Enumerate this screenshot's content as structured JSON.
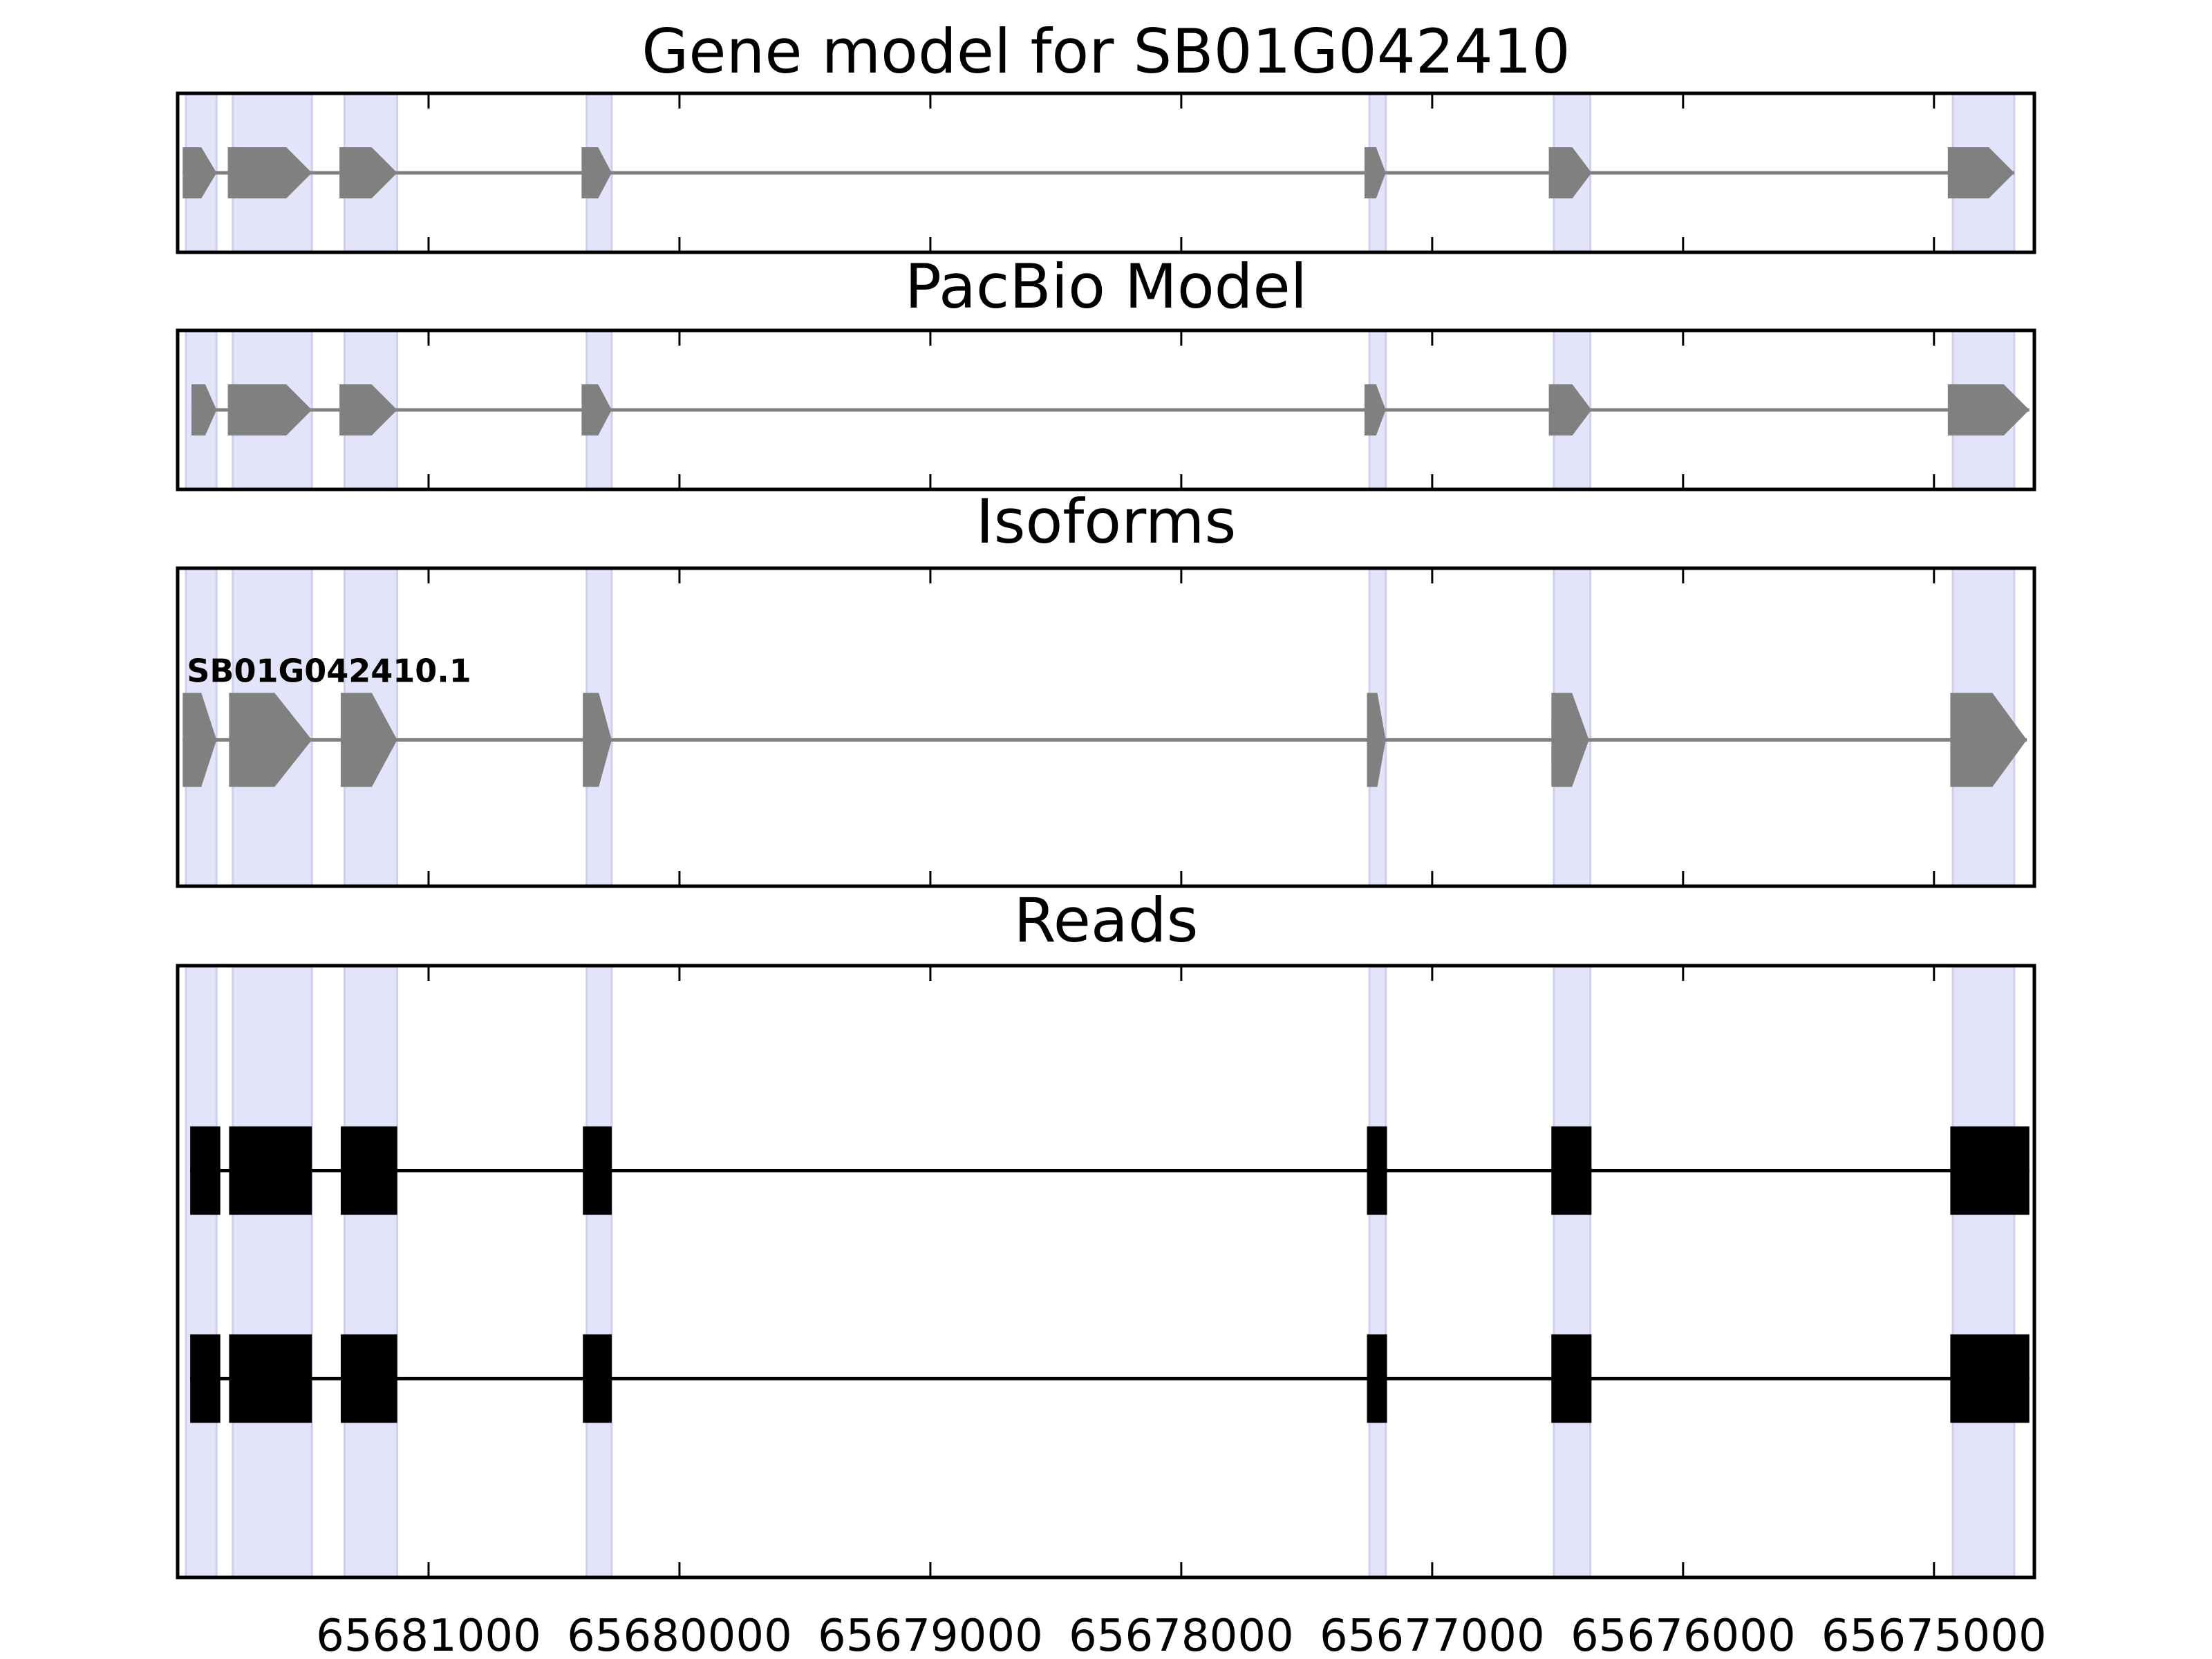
{
  "chart_data": {
    "type": "gene-structure",
    "xlim": [
      65682000,
      65674600
    ],
    "x_axis": {
      "reversed": true,
      "ticks": [
        65681000,
        65680000,
        65679000,
        65678000,
        65677000,
        65676000,
        65675000
      ],
      "tick_labels": [
        "65681000",
        "65680000",
        "65679000",
        "65678000",
        "65677000",
        "65676000",
        "65675000"
      ]
    },
    "exon_highlights": [
      [
        65681967,
        65681845
      ],
      [
        65681780,
        65681465
      ],
      [
        65681335,
        65681125
      ],
      [
        65680370,
        65680270
      ],
      [
        65677250,
        65677185
      ],
      [
        65676515,
        65676370
      ],
      [
        65674925,
        65674680
      ]
    ],
    "colors": {
      "highlight": "#e3e3f9",
      "highlight_edge": "#cfcfee",
      "model": "#808080",
      "read": "#000000",
      "frame": "#000000"
    },
    "panels": [
      {
        "key": "gene_model",
        "title": "Gene model for SB01G042410",
        "style": "arrow",
        "tracks": [
          {
            "label": "",
            "exons": [
              [
                65681980,
                65681845
              ],
              [
                65681800,
                65681465
              ],
              [
                65681355,
                65681125
              ],
              [
                65680390,
                65680270
              ],
              [
                65677270,
                65677185
              ],
              [
                65676535,
                65676365
              ],
              [
                65674945,
                65674680
              ]
            ]
          }
        ]
      },
      {
        "key": "pacbio_model",
        "title": "PacBio Model",
        "style": "arrow",
        "tracks": [
          {
            "label": "",
            "exons": [
              [
                65681945,
                65681845
              ],
              [
                65681800,
                65681465
              ],
              [
                65681355,
                65681125
              ],
              [
                65680390,
                65680270
              ],
              [
                65677270,
                65677185
              ],
              [
                65676535,
                65676365
              ],
              [
                65674945,
                65674620
              ]
            ]
          }
        ]
      },
      {
        "key": "isoforms",
        "title": "Isoforms",
        "style": "arrow",
        "tracks": [
          {
            "label": "SB01G042410.1",
            "exons": [
              [
                65681980,
                65681845
              ],
              [
                65681795,
                65681465
              ],
              [
                65681350,
                65681125
              ],
              [
                65680385,
                65680270
              ],
              [
                65677260,
                65677185
              ],
              [
                65676525,
                65676375
              ],
              [
                65674935,
                65674630
              ]
            ]
          }
        ]
      },
      {
        "key": "reads",
        "title": "Reads",
        "style": "box",
        "tracks": [
          {
            "label": "",
            "exons": [
              [
                65681950,
                65681830
              ],
              [
                65681795,
                65681465
              ],
              [
                65681350,
                65681125
              ],
              [
                65680385,
                65680270
              ],
              [
                65677260,
                65677180
              ],
              [
                65676525,
                65676365
              ],
              [
                65674935,
                65674620
              ]
            ]
          },
          {
            "label": "",
            "exons": [
              [
                65681950,
                65681830
              ],
              [
                65681795,
                65681465
              ],
              [
                65681350,
                65681125
              ],
              [
                65680385,
                65680270
              ],
              [
                65677260,
                65677180
              ],
              [
                65676525,
                65676365
              ],
              [
                65674935,
                65674620
              ]
            ]
          }
        ]
      }
    ]
  }
}
